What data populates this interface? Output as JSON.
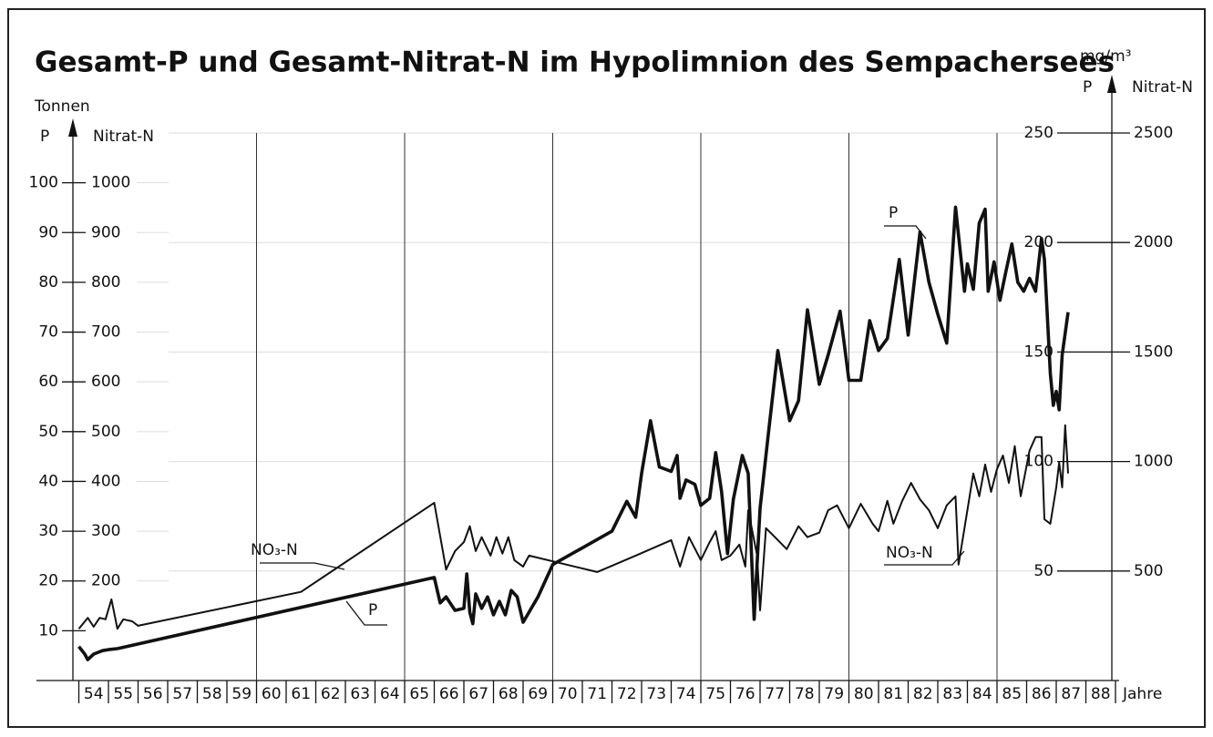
{
  "chart_data": {
    "type": "line",
    "title": "Gesamt-P und Gesamt-Nitrat-N im Hypolimnion des Sempachersees",
    "left_axis_unit": "Tonnen",
    "left_axis_p_label": "P",
    "left_axis_nitrat_label": "Nitrat-N",
    "right_axis_unit": "mg/m³",
    "right_axis_p_label": "P",
    "right_axis_nitrat_label": "Nitrat-N",
    "xlabel": "Jahre",
    "xlim": [
      53.8,
      89
    ],
    "xticks": [
      54,
      55,
      56,
      57,
      58,
      59,
      60,
      61,
      62,
      63,
      64,
      65,
      66,
      67,
      68,
      69,
      70,
      71,
      72,
      73,
      74,
      75,
      76,
      77,
      78,
      79,
      80,
      81,
      82,
      83,
      84,
      85,
      86,
      87,
      88,
      89
    ],
    "year_labels": [
      "54",
      "55",
      "56",
      "57",
      "58",
      "59",
      "60",
      "61",
      "62",
      "63",
      "64",
      "65",
      "66",
      "67",
      "68",
      "69",
      "70",
      "71",
      "72",
      "73",
      "74",
      "75",
      "76",
      "77",
      "78",
      "79",
      "80",
      "81",
      "82",
      "83",
      "84",
      "85",
      "86",
      "87",
      "88"
    ],
    "xgrid": [
      60,
      65,
      70,
      75,
      80,
      85
    ],
    "ylim": [
      0,
      110
    ],
    "yticks": [
      10,
      20,
      30,
      40,
      50,
      60,
      70,
      80,
      90,
      100
    ],
    "ylim_nitrat": [
      0,
      1100
    ],
    "yticks_nitrat": [
      200,
      300,
      400,
      500,
      600,
      700,
      800,
      900,
      1000
    ],
    "y2lim": [
      0,
      250
    ],
    "y2ticks": [
      50,
      100,
      150,
      200,
      250
    ],
    "y2lim_nitrat": [
      0,
      2500
    ],
    "y2ticks_nitrat": [
      500,
      1000,
      1500,
      2000,
      2500
    ],
    "series": [
      {
        "name": "P",
        "axis": "y",
        "color": "#111111",
        "x": [
          54.0,
          54.2,
          54.3,
          54.5,
          54.8,
          55.0,
          55.3,
          66.0,
          66.2,
          66.4,
          66.7,
          67.0,
          67.1,
          67.2,
          67.3,
          67.4,
          67.6,
          67.8,
          68.0,
          68.2,
          68.4,
          68.6,
          68.8,
          69.0,
          69.5,
          70.0,
          72.0,
          72.5,
          72.8,
          73.0,
          73.3,
          73.6,
          74.0,
          74.2,
          74.3,
          74.5,
          74.8,
          75.0,
          75.3,
          75.5,
          75.7,
          75.9,
          76.1,
          76.4,
          76.6,
          76.8,
          77.0,
          77.3,
          77.6,
          78.0,
          78.3,
          78.6,
          79.0,
          79.3,
          79.7,
          80.0,
          80.4,
          80.7,
          81.0,
          81.3,
          81.7,
          82.0,
          82.4,
          82.7,
          83.0,
          83.3,
          83.6,
          83.9,
          84.0,
          84.2,
          84.4,
          84.6,
          84.7,
          84.9,
          85.1,
          85.3,
          85.5,
          85.7,
          85.9,
          86.1,
          86.3,
          86.5,
          86.6,
          86.8,
          86.9,
          87.0,
          87.1,
          87.2,
          87.4
        ],
        "values": [
          6.8,
          5.3,
          4.2,
          5.3,
          6,
          6.2,
          6.4,
          20.7,
          15.6,
          16.8,
          14.1,
          14.5,
          21.4,
          13.7,
          11.4,
          17.4,
          14.5,
          16.8,
          13.2,
          15.9,
          13.2,
          18.1,
          16.8,
          11.7,
          16.8,
          23.3,
          30,
          36,
          32.8,
          41.6,
          52.2,
          42.9,
          42,
          45.2,
          36.6,
          40.3,
          39.4,
          35.2,
          36.6,
          45.8,
          37.9,
          25.5,
          36.4,
          45.2,
          41.6,
          12.3,
          34.6,
          50.7,
          66.3,
          52.2,
          56.2,
          74.5,
          59.5,
          65.4,
          74.2,
          60.3,
          60.3,
          72.3,
          66.3,
          68.7,
          84.6,
          69.4,
          90.1,
          80,
          73.6,
          67.8,
          95.1,
          78.2,
          83.7,
          78.6,
          91.9,
          94.7,
          78.2,
          84.1,
          76.4,
          82.2,
          87.7,
          80,
          78.2,
          80.8,
          78.2,
          88.8,
          84.6,
          61.7,
          55.3,
          58.1,
          54.4,
          65.4,
          74
        ]
      },
      {
        "name": "NO₃-N",
        "axis": "nitrat",
        "color": "#111111",
        "x": [
          54.0,
          54.3,
          54.5,
          54.7,
          54.9,
          55.1,
          55.3,
          55.5,
          55.8,
          56.0,
          61.5,
          66.0,
          66.4,
          66.7,
          67.0,
          67.2,
          67.4,
          67.6,
          67.9,
          68.1,
          68.3,
          68.5,
          68.7,
          69.0,
          69.2,
          71.5,
          72.8,
          74.0,
          74.3,
          74.6,
          75.0,
          75.3,
          75.5,
          75.7,
          76.0,
          76.3,
          76.5,
          76.6,
          76.9,
          77.0,
          77.2,
          77.5,
          77.9,
          78.3,
          78.6,
          79.0,
          79.3,
          79.6,
          80.0,
          80.4,
          80.8,
          81.0,
          81.3,
          81.5,
          81.8,
          82.1,
          82.4,
          82.7,
          83.0,
          83.3,
          83.6,
          83.7,
          83.9,
          84.2,
          84.4,
          84.6,
          84.8,
          85.0,
          85.2,
          85.4,
          85.6,
          85.8,
          86.1,
          86.3,
          86.5,
          86.6,
          86.8,
          87.0,
          87.1,
          87.2,
          87.3,
          87.4
        ],
        "values": [
          104,
          126,
          108,
          126,
          123,
          163,
          104,
          123,
          119,
          110,
          178,
          357,
          223,
          260,
          278,
          310,
          260,
          288,
          251,
          288,
          255,
          288,
          242,
          229,
          251,
          218,
          251,
          282,
          229,
          288,
          242,
          278,
          300,
          242,
          251,
          273,
          229,
          342,
          251,
          141,
          306,
          288,
          264,
          310,
          288,
          297,
          342,
          352,
          306,
          355,
          315,
          300,
          361,
          315,
          361,
          397,
          364,
          342,
          306,
          352,
          370,
          233,
          306,
          416,
          370,
          434,
          379,
          425,
          452,
          397,
          471,
          370,
          462,
          489,
          489,
          324,
          315,
          388,
          438,
          388,
          513,
          416
        ]
      }
    ],
    "annotations": [
      "P",
      "NO₃-N",
      "P",
      "NO₃-N"
    ]
  }
}
